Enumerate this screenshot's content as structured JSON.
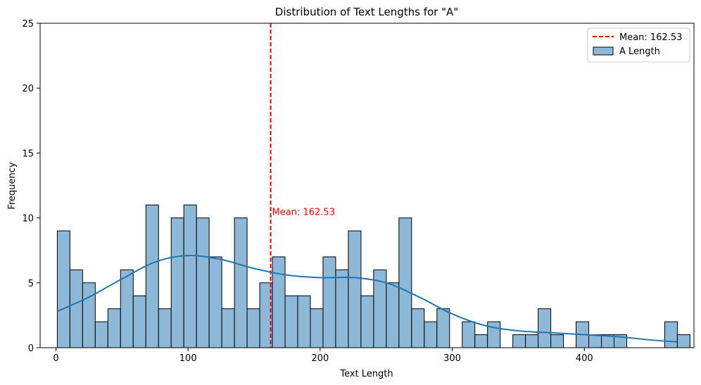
{
  "chart_data": {
    "type": "bar",
    "title": "Distribution of Text Lengths for \"A\"",
    "xlabel": "Text Length",
    "ylabel": "Frequency",
    "xlim": [
      -12,
      483
    ],
    "ylim": [
      0,
      25
    ],
    "xticks": [
      0,
      100,
      200,
      300,
      400
    ],
    "yticks": [
      0,
      5,
      10,
      15,
      20,
      25
    ],
    "bin_start": 1,
    "bin_width": 9.58,
    "series": [
      {
        "name": "A Length",
        "type": "histogram",
        "color": "#8db8d8",
        "edge_color": "#000000",
        "values": [
          9,
          6,
          5,
          2,
          3,
          6,
          4,
          11,
          3,
          10,
          11,
          10,
          7,
          3,
          10,
          3,
          5,
          7,
          4,
          4,
          3,
          7,
          6,
          9,
          4,
          6,
          5,
          10,
          3,
          2,
          3,
          0,
          2,
          1,
          2,
          0,
          1,
          1,
          3,
          1,
          0,
          2,
          1,
          1,
          1,
          0,
          0,
          0,
          2,
          1
        ]
      }
    ],
    "kde": {
      "color": "#1f77b4",
      "x": [
        1,
        25,
        50,
        75,
        100,
        125,
        150,
        175,
        200,
        225,
        250,
        275,
        300,
        325,
        350,
        375,
        400,
        425,
        450,
        470
      ],
      "y": [
        2.8,
        3.9,
        5.3,
        6.6,
        7.1,
        6.8,
        6.1,
        5.6,
        5.4,
        5.4,
        5.0,
        3.9,
        2.6,
        1.7,
        1.3,
        1.15,
        1.0,
        0.85,
        0.6,
        0.45
      ]
    },
    "mean": {
      "value": 162.53,
      "legend_label": "Mean: 162.53",
      "annotation": "Mean: 162.53",
      "annotation_y": 10.5,
      "color": "#ff0000"
    },
    "legend": {
      "placement": "top-right",
      "entries": [
        "Mean: 162.53",
        "A Length"
      ]
    },
    "grid": false
  }
}
